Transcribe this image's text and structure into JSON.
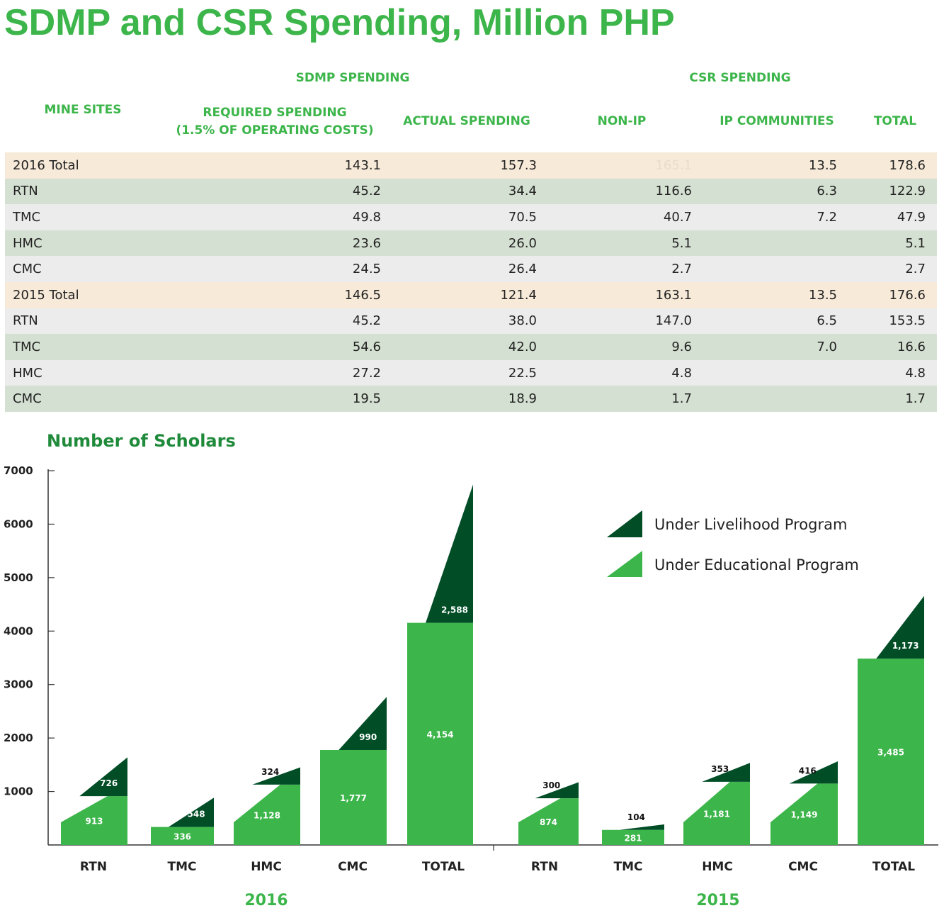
{
  "title": "SDMP and CSR Spending, Million PHP",
  "table": {
    "group_headers": {
      "sdmp": "SDMP SPENDING",
      "csr": "CSR SPENDING"
    },
    "headers": {
      "mine_sites": "MINE SITES",
      "required_line1": "REQUIRED SPENDING",
      "required_line2": "(1.5% OF OPERATING COSTS)",
      "actual": "ACTUAL SPENDING",
      "non_ip": "NON-IP",
      "ip": "IP COMMUNITIES",
      "total": "TOTAL"
    },
    "rows": [
      {
        "site": "2016 Total",
        "required": "143.1",
        "actual": "157.3",
        "non_ip": "165.1",
        "ip": "13.5",
        "total": "178.6",
        "kind": "total",
        "faint_non_ip": true
      },
      {
        "site": "RTN",
        "required": "45.2",
        "actual": "34.4",
        "non_ip": "116.6",
        "ip": "6.3",
        "total": "122.9",
        "kind": "g"
      },
      {
        "site": "TMC",
        "required": "49.8",
        "actual": "70.5",
        "non_ip": "40.7",
        "ip": "7.2",
        "total": "47.9",
        "kind": "l"
      },
      {
        "site": "HMC",
        "required": "23.6",
        "actual": "26.0",
        "non_ip": "5.1",
        "ip": "",
        "total": "5.1",
        "kind": "g"
      },
      {
        "site": "CMC",
        "required": "24.5",
        "actual": "26.4",
        "non_ip": "2.7",
        "ip": "",
        "total": "2.7",
        "kind": "l"
      },
      {
        "site": "2015 Total",
        "required": "146.5",
        "actual": "121.4",
        "non_ip": "163.1",
        "ip": "13.5",
        "total": "176.6",
        "kind": "total"
      },
      {
        "site": "RTN",
        "required": "45.2",
        "actual": "38.0",
        "non_ip": "147.0",
        "ip": "6.5",
        "total": "153.5",
        "kind": "l"
      },
      {
        "site": "TMC",
        "required": "54.6",
        "actual": "42.0",
        "non_ip": "9.6",
        "ip": "7.0",
        "total": "16.6",
        "kind": "g"
      },
      {
        "site": "HMC",
        "required": "27.2",
        "actual": "22.5",
        "non_ip": "4.8",
        "ip": "",
        "total": "4.8",
        "kind": "l"
      },
      {
        "site": "CMC",
        "required": "19.5",
        "actual": "18.9",
        "non_ip": "1.7",
        "ip": "",
        "total": "1.7",
        "kind": "g"
      }
    ]
  },
  "chart_data": {
    "type": "bar",
    "title": "Number of Scholars",
    "ylim": [
      0,
      7000
    ],
    "yticks": [
      1000,
      2000,
      3000,
      4000,
      5000,
      6000,
      7000
    ],
    "legend": {
      "position": "top-right"
    },
    "colors": {
      "educational": "#3cb54a",
      "livelihood": "#004d26"
    },
    "series": [
      {
        "name": "Under Livelihood Program",
        "key": "livelihood"
      },
      {
        "name": "Under Educational Program",
        "key": "educational"
      }
    ],
    "groups": [
      {
        "label": "2016",
        "categories": [
          "RTN",
          "TMC",
          "HMC",
          "CMC",
          "TOTAL"
        ],
        "educational": [
          913,
          336,
          1128,
          1777,
          4154
        ],
        "livelihood": [
          726,
          548,
          324,
          990,
          2588
        ],
        "educational_labels": [
          "913",
          "336",
          "1,128",
          "1,777",
          "4,154"
        ],
        "livelihood_labels": [
          "726",
          "548",
          "324",
          "990",
          "2,588"
        ]
      },
      {
        "label": "2015",
        "categories": [
          "RTN",
          "TMC",
          "HMC",
          "CMC",
          "TOTAL"
        ],
        "educational": [
          874,
          281,
          1181,
          1149,
          3485
        ],
        "livelihood": [
          300,
          104,
          353,
          416,
          1173
        ],
        "educational_labels": [
          "874",
          "281",
          "1,181",
          "1,149",
          "3,485"
        ],
        "livelihood_labels": [
          "300",
          "104",
          "353",
          "416",
          "1,173"
        ]
      }
    ]
  }
}
